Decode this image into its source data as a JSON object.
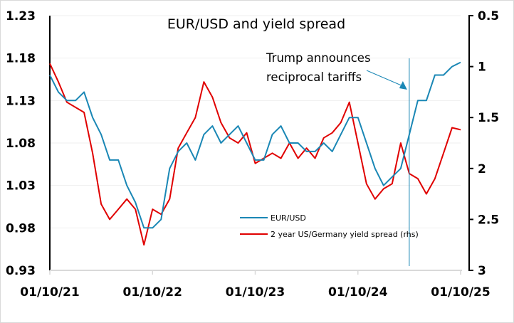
{
  "chart_data": {
    "type": "line",
    "title": "EUR/USD and yield spread",
    "x": [
      "2021-10",
      "2021-11",
      "2021-12",
      "2022-01",
      "2022-02",
      "2022-03",
      "2022-04",
      "2022-05",
      "2022-06",
      "2022-07",
      "2022-08",
      "2022-09",
      "2022-10",
      "2022-11",
      "2022-12",
      "2023-01",
      "2023-02",
      "2023-03",
      "2023-04",
      "2023-05",
      "2023-06",
      "2023-07",
      "2023-08",
      "2023-09",
      "2023-10",
      "2023-11",
      "2023-12",
      "2024-01",
      "2024-02",
      "2024-03",
      "2024-04",
      "2024-05",
      "2024-06",
      "2024-07",
      "2024-08",
      "2024-09",
      "2024-10",
      "2024-11",
      "2024-12",
      "2025-01",
      "2025-02",
      "2025-03",
      "2025-04",
      "2025-05",
      "2025-06",
      "2025-07",
      "2025-08",
      "2025-09",
      "2025-10"
    ],
    "x_ticks": [
      "01/10/21",
      "01/10/22",
      "01/10/23",
      "01/10/24",
      "01/10/25"
    ],
    "y_left": {
      "ticks": [
        "0.93",
        "0.98",
        "1.03",
        "1.08",
        "1.13",
        "1.18",
        "1.23"
      ],
      "range": [
        0.93,
        1.23
      ]
    },
    "y_right": {
      "ticks": [
        "0.5",
        "1",
        "1.5",
        "2",
        "2.5",
        "3"
      ],
      "range": [
        0.5,
        3
      ],
      "inverted": true
    },
    "grid": "horizontal",
    "legend_position": "bottom-center",
    "series": [
      {
        "name": "EUR/USD",
        "axis": "left",
        "color": "#1a87b5",
        "values": [
          1.16,
          1.14,
          1.13,
          1.13,
          1.14,
          1.11,
          1.09,
          1.06,
          1.06,
          1.03,
          1.01,
          0.98,
          0.98,
          0.99,
          1.05,
          1.07,
          1.08,
          1.06,
          1.09,
          1.1,
          1.08,
          1.09,
          1.1,
          1.08,
          1.06,
          1.06,
          1.09,
          1.1,
          1.08,
          1.08,
          1.07,
          1.07,
          1.08,
          1.07,
          1.09,
          1.11,
          1.11,
          1.08,
          1.05,
          1.03,
          1.04,
          1.05,
          1.09,
          1.13,
          1.13,
          1.16,
          1.16,
          1.17,
          1.175
        ]
      },
      {
        "name": "2 year US/Germany yield spread (rhs)",
        "axis": "right",
        "color": "#e00000",
        "values": [
          0.97,
          1.15,
          1.35,
          1.4,
          1.45,
          1.85,
          2.35,
          2.5,
          2.4,
          2.3,
          2.4,
          2.75,
          2.4,
          2.45,
          2.3,
          1.8,
          1.65,
          1.5,
          1.15,
          1.3,
          1.55,
          1.7,
          1.75,
          1.65,
          1.95,
          1.9,
          1.85,
          1.9,
          1.75,
          1.9,
          1.8,
          1.9,
          1.7,
          1.65,
          1.55,
          1.35,
          1.75,
          2.15,
          2.3,
          2.2,
          2.15,
          1.75,
          2.05,
          2.1,
          2.25,
          2.1,
          1.85,
          1.6,
          1.62
        ]
      }
    ],
    "annotation": {
      "text_line1": "Trump announces",
      "text_line2": "reciprocal tariffs",
      "date": "2025-04",
      "color": "#1a87b5"
    }
  }
}
